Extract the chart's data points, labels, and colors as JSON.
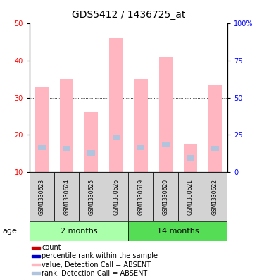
{
  "title": "GDS5412 / 1436725_at",
  "samples": [
    "GSM1330623",
    "GSM1330624",
    "GSM1330625",
    "GSM1330626",
    "GSM1330619",
    "GSM1330620",
    "GSM1330621",
    "GSM1330622"
  ],
  "value_absent": [
    33.0,
    35.0,
    26.2,
    46.0,
    35.0,
    41.0,
    17.3,
    33.3
  ],
  "rank_absent": [
    16.5,
    16.3,
    15.0,
    19.3,
    16.5,
    17.3,
    13.7,
    16.3
  ],
  "ylim_left": [
    10,
    50
  ],
  "ylim_right": [
    0,
    100
  ],
  "left_ticks": [
    10,
    20,
    30,
    40,
    50
  ],
  "right_ticks": [
    0,
    25,
    50,
    75,
    100
  ],
  "right_tick_labels": [
    "0",
    "25",
    "50",
    "75",
    "100%"
  ],
  "bar_color_absent": "#FFB6C1",
  "rank_color_absent": "#B0C4DE",
  "count_color": "#CC0000",
  "percentile_color": "#0000CC",
  "title_fontsize": 10,
  "tick_fontsize": 7,
  "group_color_2m": "#AAFFAA",
  "group_color_14m": "#55DD55",
  "sample_box_color": "#D3D3D3",
  "legend_items": [
    {
      "color": "#CC0000",
      "label": "count"
    },
    {
      "color": "#0000CC",
      "label": "percentile rank within the sample"
    },
    {
      "color": "#FFB6C1",
      "label": "value, Detection Call = ABSENT"
    },
    {
      "color": "#B0C4DE",
      "label": "rank, Detection Call = ABSENT"
    }
  ]
}
